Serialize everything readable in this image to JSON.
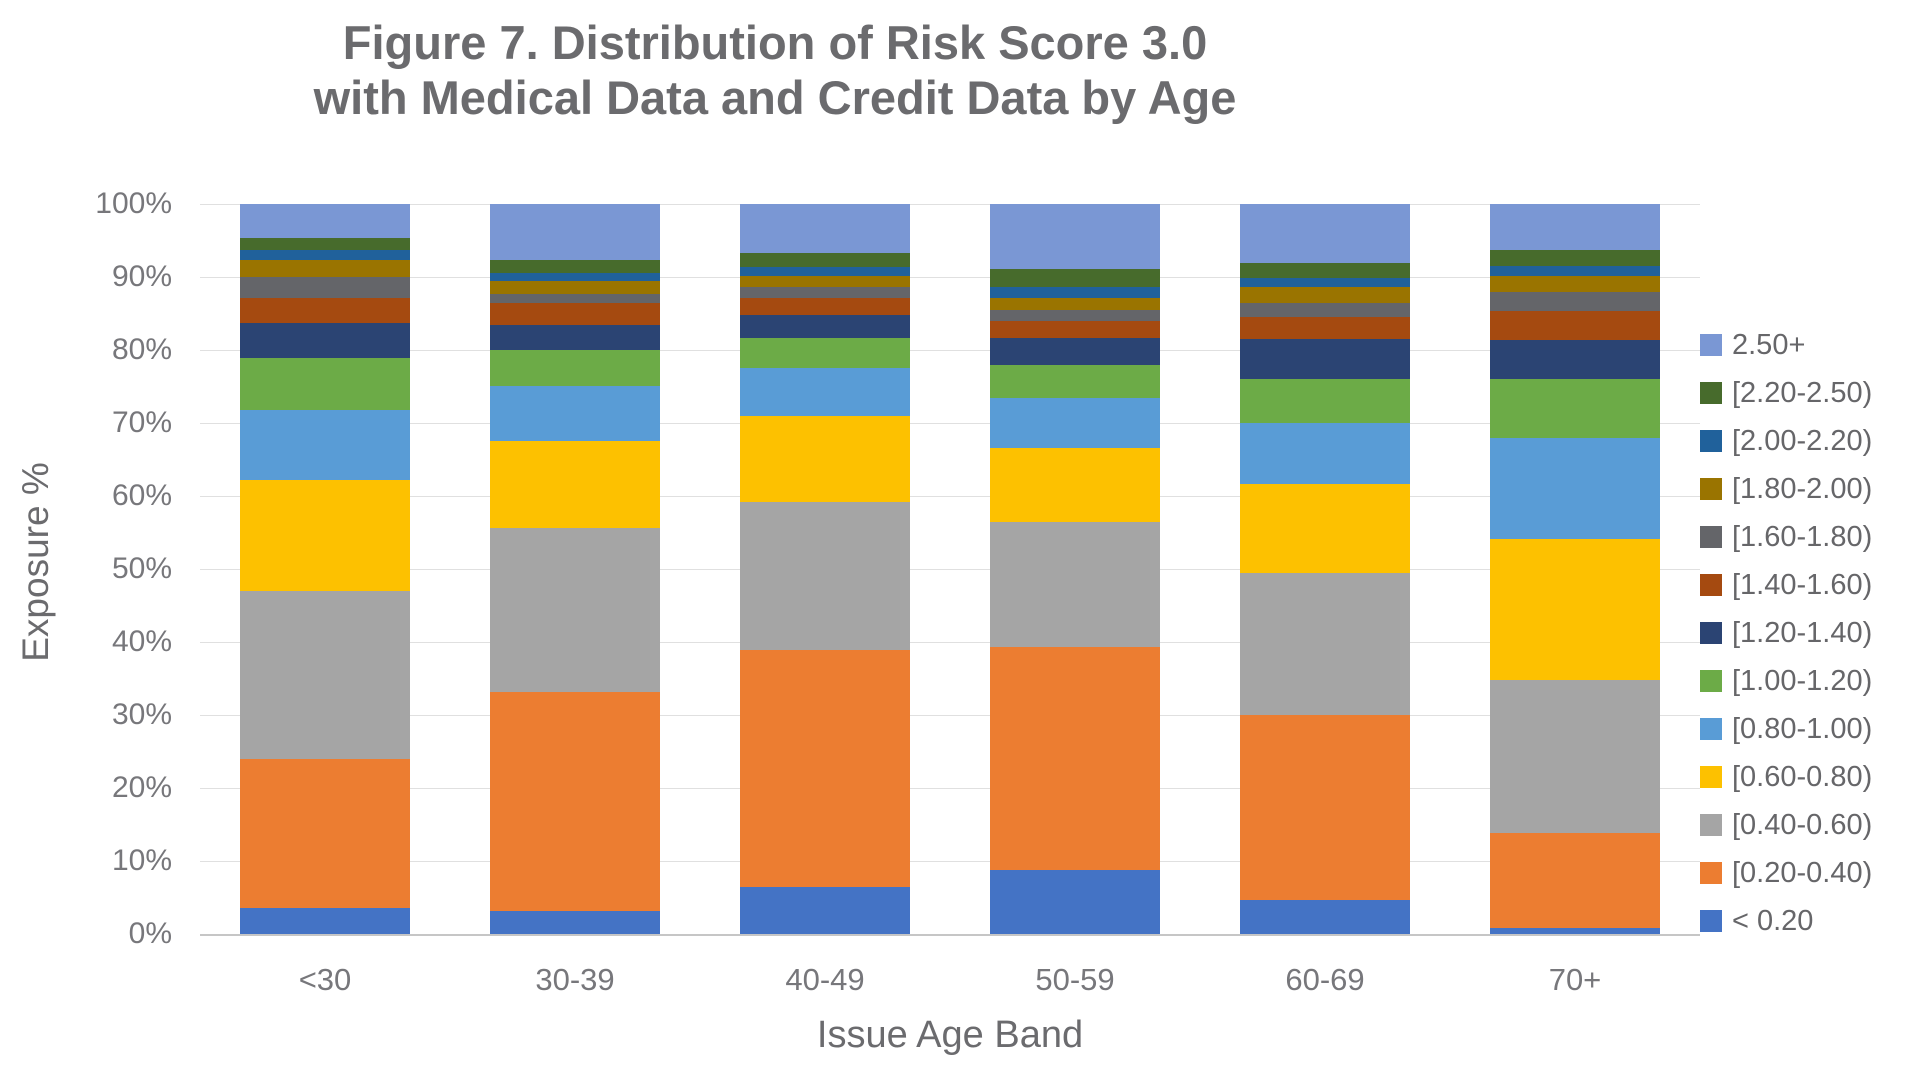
{
  "figure": {
    "title_line1": "Figure 7. Distribution of Risk Score 3.0",
    "title_line2": "with Medical Data and Credit Data by Age",
    "y_axis_title": "Exposure %",
    "x_axis_title": "Issue Age Band"
  },
  "chart_data": {
    "type": "bar",
    "stacked": true,
    "stack_total": 100,
    "title": "Figure 7. Distribution of Risk Score 3.0 with Medical Data and Credit Data by Age",
    "xlabel": "Issue Age Band",
    "ylabel": "Exposure %",
    "ylim": [
      0,
      100
    ],
    "y_ticks": [
      0,
      10,
      20,
      30,
      40,
      50,
      60,
      70,
      80,
      90,
      100
    ],
    "y_tick_suffix": "%",
    "grid": "horizontal",
    "legend_position": "right",
    "categories": [
      "<30",
      "30-39",
      "40-49",
      "50-59",
      "60-69",
      "70+"
    ],
    "series": [
      {
        "name": "2.50+",
        "color": "#7A97D4",
        "values": [
          4.7,
          7.6,
          6.7,
          8.9,
          8.1,
          6.3
        ]
      },
      {
        "name": "[2.20-2.50)",
        "color": "#476B2C",
        "values": [
          1.6,
          1.8,
          1.9,
          2.4,
          2.0,
          2.2
        ]
      },
      {
        "name": "[2.00-2.20)",
        "color": "#20619B",
        "values": [
          1.4,
          1.2,
          1.3,
          1.6,
          1.3,
          1.3
        ]
      },
      {
        "name": "[1.80-2.00)",
        "color": "#9A7400",
        "values": [
          2.3,
          1.7,
          1.4,
          1.6,
          2.1,
          2.3
        ]
      },
      {
        "name": "[1.60-1.80)",
        "color": "#646569",
        "values": [
          2.9,
          1.3,
          1.6,
          1.5,
          1.9,
          2.5
        ]
      },
      {
        "name": "[1.40-1.60)",
        "color": "#A54A10",
        "values": [
          3.4,
          3.0,
          2.3,
          2.4,
          3.1,
          4.0
        ]
      },
      {
        "name": "[1.20-1.40)",
        "color": "#2B4473",
        "values": [
          4.8,
          3.4,
          3.2,
          3.6,
          5.4,
          5.4
        ]
      },
      {
        "name": "[1.00-1.20)",
        "color": "#6CAB47",
        "values": [
          7.1,
          4.9,
          4.1,
          4.6,
          6.1,
          8.1
        ]
      },
      {
        "name": "[0.80-1.00)",
        "color": "#599CD6",
        "values": [
          9.6,
          7.6,
          6.6,
          6.8,
          8.3,
          13.8
        ]
      },
      {
        "name": "[0.60-0.80)",
        "color": "#FDC100",
        "values": [
          15.2,
          11.9,
          11.7,
          10.2,
          12.2,
          19.3
        ]
      },
      {
        "name": "[0.40-0.60)",
        "color": "#A5A5A5",
        "values": [
          23.0,
          22.4,
          20.3,
          17.1,
          19.5,
          21.0
        ]
      },
      {
        "name": "[0.20-0.40)",
        "color": "#EC7D31",
        "values": [
          20.5,
          30.0,
          32.5,
          30.5,
          25.3,
          13.0
        ]
      },
      {
        "name": "< 0.20",
        "color": "#4473C5",
        "values": [
          3.5,
          3.2,
          6.4,
          8.8,
          4.7,
          0.8
        ]
      }
    ]
  }
}
